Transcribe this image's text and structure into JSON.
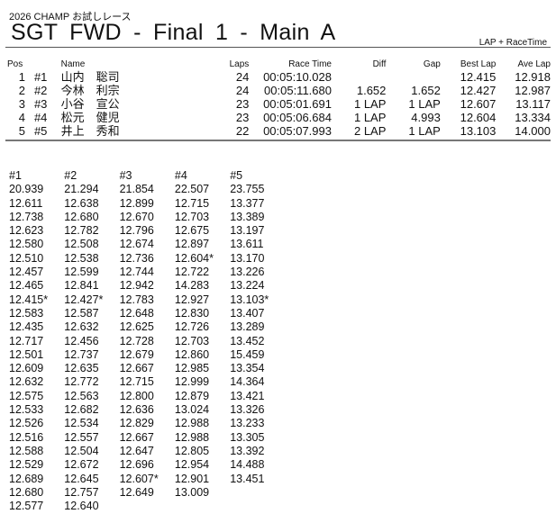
{
  "header": {
    "subtitle": "2026  CHAMP お試しレース",
    "title": "SGT  FWD  -  Final 1  -  Main A",
    "mode": "LAP + RaceTime"
  },
  "results": {
    "columns": [
      "Pos",
      "",
      "Name",
      "Laps",
      "Race Time",
      "Diff",
      "Gap",
      "Best Lap",
      "Ave Lap"
    ],
    "rows": [
      [
        "1",
        "#1",
        "山内　聡司",
        "24",
        "00:05:10.028",
        "",
        "",
        "12.415",
        "12.918"
      ],
      [
        "2",
        "#2",
        "今林　利宗",
        "24",
        "00:05:11.680",
        "1.652",
        "1.652",
        "12.427",
        "12.987"
      ],
      [
        "3",
        "#3",
        "小谷　宣公",
        "23",
        "00:05:01.691",
        "1 LAP",
        "1 LAP",
        "12.607",
        "13.117"
      ],
      [
        "4",
        "#4",
        "松元　健児",
        "23",
        "00:05:06.684",
        "1 LAP",
        "4.993",
        "12.604",
        "13.334"
      ],
      [
        "5",
        "#5",
        "井上　秀和",
        "22",
        "00:05:07.993",
        "2 LAP",
        "1 LAP",
        "13.103",
        "14.000"
      ]
    ]
  },
  "laps": [
    {
      "car": "#1",
      "times": [
        "20.939",
        "12.611",
        "12.738",
        "12.623",
        "12.580",
        "12.510",
        "12.457",
        "12.465",
        "12.415*",
        "12.583",
        "12.435",
        "12.717",
        "12.501",
        "12.609",
        "12.632",
        "12.575",
        "12.533",
        "12.526",
        "12.516",
        "12.588",
        "12.529",
        "12.689",
        "12.680",
        "12.577"
      ]
    },
    {
      "car": "#2",
      "times": [
        "21.294",
        "12.638",
        "12.680",
        "12.782",
        "12.508",
        "12.538",
        "12.599",
        "12.841",
        "12.427*",
        "12.587",
        "12.632",
        "12.456",
        "12.737",
        "12.635",
        "12.772",
        "12.563",
        "12.682",
        "12.534",
        "12.557",
        "12.504",
        "12.672",
        "12.645",
        "12.757",
        "12.640"
      ]
    },
    {
      "car": "#3",
      "times": [
        "21.854",
        "12.899",
        "12.670",
        "12.796",
        "12.674",
        "12.736",
        "12.744",
        "12.942",
        "12.783",
        "12.648",
        "12.625",
        "12.728",
        "12.679",
        "12.667",
        "12.715",
        "12.800",
        "12.636",
        "12.829",
        "12.667",
        "12.647",
        "12.696",
        "12.607*",
        "12.649"
      ]
    },
    {
      "car": "#4",
      "times": [
        "22.507",
        "12.715",
        "12.703",
        "12.675",
        "12.897",
        "12.604*",
        "12.722",
        "14.283",
        "12.927",
        "12.830",
        "12.726",
        "12.703",
        "12.860",
        "12.985",
        "12.999",
        "12.879",
        "13.024",
        "12.988",
        "12.988",
        "12.805",
        "12.954",
        "12.901",
        "13.009"
      ]
    },
    {
      "car": "#5",
      "times": [
        "23.755",
        "13.377",
        "13.389",
        "13.197",
        "13.611",
        "13.170",
        "13.226",
        "13.224",
        "13.103*",
        "13.407",
        "13.289",
        "13.452",
        "15.459",
        "13.354",
        "14.364",
        "13.421",
        "13.326",
        "13.233",
        "13.305",
        "13.392",
        "14.488",
        "13.451"
      ]
    }
  ]
}
